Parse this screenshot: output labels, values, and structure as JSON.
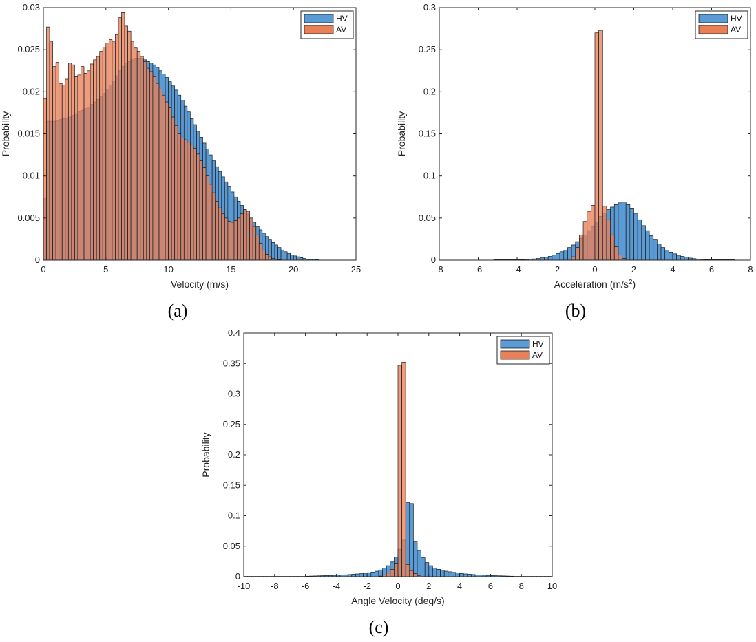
{
  "colors": {
    "hv": "#5B9BD5",
    "av": "#E8805A",
    "overlap": "#8A5A4A",
    "axis": "#262626"
  },
  "panels": [
    {
      "label": "(a)",
      "letter": "a"
    },
    {
      "label": "(b)",
      "letter": "b"
    },
    {
      "label": "(c)",
      "letter": "c"
    }
  ],
  "chart_data": [
    {
      "type": "bar",
      "title": "",
      "xlabel": "Velocity (m/s)",
      "ylabel": "Probability",
      "xlim": [
        0,
        25
      ],
      "ylim": [
        0,
        0.03
      ],
      "xticks": [
        "0",
        "5",
        "10",
        "15",
        "20",
        "25"
      ],
      "yticks": [
        "0",
        "0.005",
        "0.01",
        "0.015",
        "0.02",
        "0.025",
        "0.03"
      ],
      "legend": [
        "HV",
        "AV"
      ],
      "legend_position": "top-right",
      "bin_width": 0.25,
      "series": [
        {
          "name": "HV",
          "x_start": 0,
          "values": [
            0.0073,
            0.0165,
            0.0165,
            0.0165,
            0.0166,
            0.0167,
            0.0168,
            0.0169,
            0.017,
            0.0172,
            0.0174,
            0.0176,
            0.0178,
            0.018,
            0.0182,
            0.0185,
            0.0188,
            0.0191,
            0.0194,
            0.0198,
            0.0203,
            0.0208,
            0.0213,
            0.0219,
            0.0225,
            0.023,
            0.0234,
            0.0236,
            0.0238,
            0.0239,
            0.0239,
            0.0239,
            0.0238,
            0.0236,
            0.0234,
            0.0232,
            0.0229,
            0.0225,
            0.0221,
            0.0217,
            0.0212,
            0.0207,
            0.0202,
            0.0196,
            0.019,
            0.0183,
            0.0176,
            0.0168,
            0.0161,
            0.0153,
            0.0146,
            0.0139,
            0.0132,
            0.0125,
            0.0118,
            0.0111,
            0.0105,
            0.0099,
            0.0093,
            0.0087,
            0.0081,
            0.0075,
            0.007,
            0.0065,
            0.006,
            0.0055,
            0.005,
            0.0045,
            0.004,
            0.0036,
            0.0032,
            0.0028,
            0.0024,
            0.0021,
            0.0018,
            0.0015,
            0.0012,
            0.001,
            0.0008,
            0.0006,
            0.0005,
            0.0004,
            0.0003,
            0.0002,
            0.0001,
            0.0001,
            0.0001,
            5e-05
          ]
        },
        {
          "name": "AV",
          "x_start": 0,
          "values": [
            0.0192,
            0.0277,
            0.026,
            0.023,
            0.0235,
            0.021,
            0.0208,
            0.0215,
            0.0234,
            0.0232,
            0.0218,
            0.022,
            0.023,
            0.0222,
            0.0225,
            0.0233,
            0.0238,
            0.0242,
            0.0248,
            0.0253,
            0.0258,
            0.0262,
            0.026,
            0.0268,
            0.0288,
            0.0294,
            0.0278,
            0.0272,
            0.026,
            0.0252,
            0.0248,
            0.0242,
            0.0236,
            0.0228,
            0.0224,
            0.0218,
            0.021,
            0.0203,
            0.0196,
            0.0188,
            0.0181,
            0.017,
            0.016,
            0.015,
            0.0145,
            0.0143,
            0.014,
            0.0137,
            0.0133,
            0.0126,
            0.0118,
            0.011,
            0.01,
            0.009,
            0.008,
            0.007,
            0.0062,
            0.0055,
            0.005,
            0.0046,
            0.0045,
            0.0047,
            0.005,
            0.0055,
            0.006,
            0.0058,
            0.005,
            0.004,
            0.003,
            0.002,
            0.0012,
            0.0007,
            0.0004,
            0.0002,
            0.0001,
            5e-05
          ]
        }
      ]
    },
    {
      "type": "bar",
      "title": "",
      "xlabel": "Acceleration (m/s",
      "xlabel_sup": "2",
      "xlabel_end": ")",
      "ylabel": "Probability",
      "xlim": [
        -8,
        8
      ],
      "ylim": [
        0,
        0.3
      ],
      "xticks": [
        "-8",
        "-6",
        "-4",
        "-2",
        "0",
        "2",
        "4",
        "6",
        "8"
      ],
      "yticks": [
        "0",
        "0.05",
        "0.1",
        "0.15",
        "0.2",
        "0.25",
        "0.3"
      ],
      "legend": [
        "HV",
        "AV"
      ],
      "legend_position": "top-right",
      "bin_width": 0.2,
      "series": [
        {
          "name": "HV",
          "x_start": -5.2,
          "values": [
            0.0005,
            0.0005,
            0.0005,
            0.0005,
            0.0005,
            0.0005,
            0.0005,
            0.0007,
            0.0009,
            0.0012,
            0.0015,
            0.002,
            0.0028,
            0.0035,
            0.0045,
            0.006,
            0.008,
            0.01,
            0.012,
            0.015,
            0.018,
            0.022,
            0.026,
            0.03,
            0.035,
            0.04,
            0.045,
            0.052,
            0.056,
            0.06,
            0.063,
            0.066,
            0.068,
            0.069,
            0.066,
            0.061,
            0.055,
            0.048,
            0.041,
            0.035,
            0.029,
            0.024,
            0.019,
            0.015,
            0.012,
            0.0095,
            0.0075,
            0.0058,
            0.0045,
            0.0035,
            0.0025,
            0.0018,
            0.0013,
            0.0009,
            0.0006,
            0.0005,
            0.0005,
            0.0005,
            0.0005,
            0.0005,
            0.0005,
            0.0005
          ]
        },
        {
          "name": "AV",
          "x_start": -1.2,
          "values": [
            0.004,
            0.015,
            0.03,
            0.046,
            0.058,
            0.065,
            0.27,
            0.273,
            0.064,
            0.048,
            0.03,
            0.016,
            0.006,
            0.002
          ]
        }
      ]
    },
    {
      "type": "bar",
      "title": "",
      "xlabel": "Angle Velocity (deg/s)",
      "ylabel": "Probability",
      "xlim": [
        -10,
        10
      ],
      "ylim": [
        0,
        0.4
      ],
      "xticks": [
        "-10",
        "-8",
        "-6",
        "-4",
        "-2",
        "0",
        "2",
        "4",
        "6",
        "8",
        "10"
      ],
      "yticks": [
        "0",
        "0.05",
        "0.1",
        "0.15",
        "0.2",
        "0.25",
        "0.3",
        "0.35",
        "0.4"
      ],
      "legend": [
        "HV",
        "AV"
      ],
      "legend_position": "top-right",
      "bin_width": 0.25,
      "series": [
        {
          "name": "HV",
          "x_start": -10,
          "values": [
            0.0005,
            0.0005,
            0.0005,
            0.0005,
            0.0005,
            0.0005,
            0.0005,
            0.0005,
            0.0005,
            0.0005,
            0.0005,
            0.0005,
            0.0005,
            0.0005,
            0.0005,
            0.0005,
            0.0008,
            0.001,
            0.0012,
            0.0014,
            0.0016,
            0.0018,
            0.002,
            0.0022,
            0.0025,
            0.0028,
            0.0031,
            0.0035,
            0.004,
            0.0045,
            0.005,
            0.0057,
            0.0065,
            0.0075,
            0.009,
            0.011,
            0.014,
            0.018,
            0.024,
            0.032,
            0.045,
            0.06,
            0.122,
            0.12,
            0.058,
            0.043,
            0.031,
            0.023,
            0.018,
            0.014,
            0.012,
            0.0105,
            0.009,
            0.008,
            0.007,
            0.006,
            0.0052,
            0.0045,
            0.004,
            0.0035,
            0.003,
            0.0027,
            0.0024,
            0.0021,
            0.0018,
            0.0016,
            0.0014,
            0.0012,
            0.001,
            0.0008,
            0.0005,
            0.0005,
            0.0005,
            0.0005,
            0.0005,
            0.0005,
            0.0005,
            0.0005,
            0.0005,
            0.0005
          ]
        },
        {
          "name": "AV",
          "x_start": -1.25,
          "values": [
            0.001,
            0.003,
            0.006,
            0.012,
            0.022,
            0.347,
            0.352,
            0.02,
            0.01,
            0.005,
            0.002
          ]
        }
      ]
    }
  ]
}
